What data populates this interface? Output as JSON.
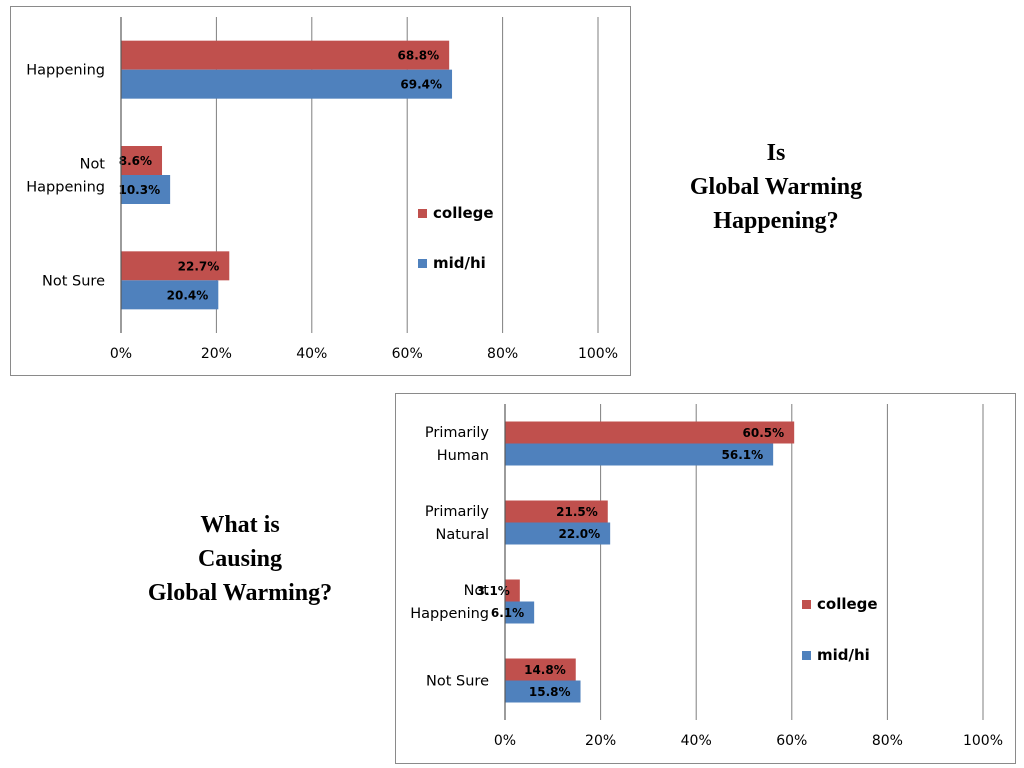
{
  "titles": {
    "top": [
      "Is",
      "Global Warming",
      "Happening?"
    ],
    "bottom": [
      "What is",
      "Causing",
      "Global Warming?"
    ]
  },
  "colors": {
    "college": "#c0504d",
    "midhi": "#4f81bd",
    "grid": "#7f7f7f"
  },
  "chart_data": [
    {
      "type": "bar",
      "orientation": "horizontal",
      "categories": [
        [
          "Happening"
        ],
        [
          "Not",
          "Happening"
        ],
        [
          "Not Sure"
        ]
      ],
      "series": [
        {
          "name": "college",
          "values": [
            68.8,
            8.6,
            22.7
          ],
          "labels": [
            "68.8%",
            "8.6%",
            "22.7%"
          ]
        },
        {
          "name": "mid/hi",
          "values": [
            69.4,
            10.3,
            20.4
          ],
          "labels": [
            "69.4%",
            "10.3%",
            "20.4%"
          ]
        }
      ],
      "xlim": [
        0,
        100
      ],
      "ticks": [
        "0%",
        "20%",
        "40%",
        "60%",
        "80%",
        "100%"
      ],
      "grid": true,
      "legend": "right"
    },
    {
      "type": "bar",
      "orientation": "horizontal",
      "categories": [
        [
          "Primarily",
          "Human"
        ],
        [
          "Primarily",
          "Natural"
        ],
        [
          "Not",
          "Happening"
        ],
        [
          "Not Sure"
        ]
      ],
      "series": [
        {
          "name": "college",
          "values": [
            60.5,
            21.5,
            3.1,
            14.8
          ],
          "labels": [
            "60.5%",
            "21.5%",
            "3.1%",
            "14.8%"
          ]
        },
        {
          "name": "mid/hi",
          "values": [
            56.1,
            22.0,
            6.1,
            15.8
          ],
          "labels": [
            "56.1%",
            "22.0%",
            "6.1%",
            "15.8%"
          ]
        }
      ],
      "xlim": [
        0,
        100
      ],
      "ticks": [
        "0%",
        "20%",
        "40%",
        "60%",
        "80%",
        "100%"
      ],
      "grid": true,
      "legend": "right"
    }
  ]
}
